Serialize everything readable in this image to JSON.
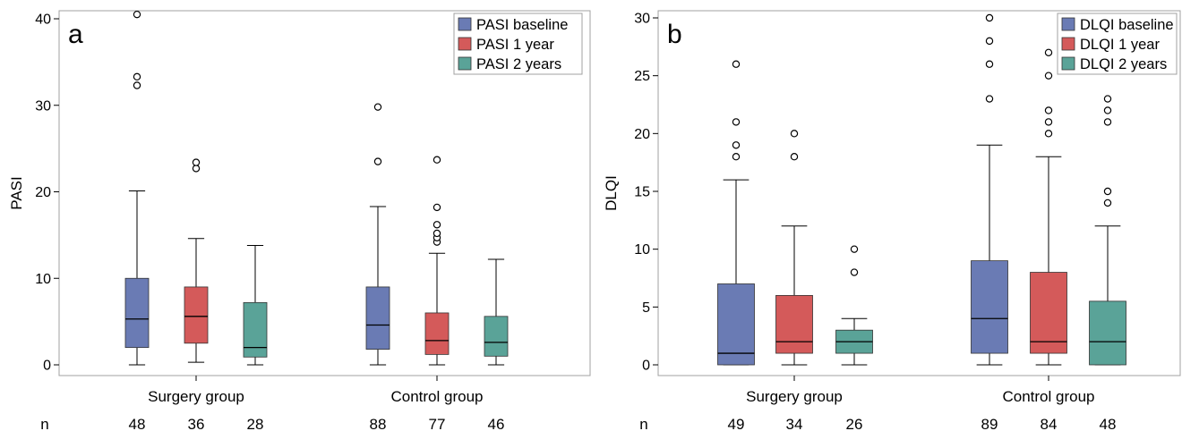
{
  "chart_data": [
    {
      "panel": "a",
      "type": "box",
      "ylabel": "PASI",
      "ylim": [
        -2,
        42
      ],
      "yticks": [
        0,
        10,
        20,
        30,
        40
      ],
      "groups": [
        "Surgery group",
        "Control group"
      ],
      "series": [
        {
          "name": "PASI baseline",
          "color": "#6a7bb4"
        },
        {
          "name": "PASI 1 year",
          "color": "#d45a5a"
        },
        {
          "name": "PASI 2 years",
          "color": "#5aa398"
        }
      ],
      "boxes": [
        {
          "group": 0,
          "series": 0,
          "whisker_low": 0,
          "q1": 2,
          "median": 5.3,
          "q3": 10,
          "whisker_high": 20.1,
          "outliers": [
            32.3,
            33.3,
            40.5
          ]
        },
        {
          "group": 0,
          "series": 1,
          "whisker_low": 0.3,
          "q1": 2.5,
          "median": 5.6,
          "q3": 9,
          "whisker_high": 14.6,
          "outliers": [
            22.7,
            23.4
          ]
        },
        {
          "group": 0,
          "series": 2,
          "whisker_low": 0,
          "q1": 0.9,
          "median": 2,
          "q3": 7.2,
          "whisker_high": 13.8,
          "outliers": []
        },
        {
          "group": 1,
          "series": 0,
          "whisker_low": 0,
          "q1": 1.8,
          "median": 4.6,
          "q3": 9,
          "whisker_high": 18.3,
          "outliers": [
            23.5,
            29.8
          ]
        },
        {
          "group": 1,
          "series": 1,
          "whisker_low": 0,
          "q1": 1.2,
          "median": 2.8,
          "q3": 6,
          "whisker_high": 12.9,
          "outliers": [
            14.2,
            14.7,
            15.2,
            16.2,
            18.2,
            23.7
          ]
        },
        {
          "group": 1,
          "series": 2,
          "whisker_low": 0,
          "q1": 1,
          "median": 2.6,
          "q3": 5.6,
          "whisker_high": 12.2,
          "outliers": []
        }
      ],
      "n_label": "n",
      "n_values": [
        "48",
        "36",
        "28",
        "88",
        "77",
        "46"
      ]
    },
    {
      "panel": "b",
      "type": "box",
      "ylabel": "DLQI",
      "ylim": [
        -1,
        31
      ],
      "yticks": [
        0,
        5,
        10,
        15,
        20,
        25,
        30
      ],
      "groups": [
        "Surgery group",
        "Control group"
      ],
      "series": [
        {
          "name": "DLQI baseline",
          "color": "#6a7bb4"
        },
        {
          "name": "DLQI 1 year",
          "color": "#d45a5a"
        },
        {
          "name": "DLQI 2 years",
          "color": "#5aa398"
        }
      ],
      "boxes": [
        {
          "group": 0,
          "series": 0,
          "whisker_low": 0,
          "q1": 0,
          "median": 1,
          "q3": 7,
          "whisker_high": 16,
          "outliers": [
            18,
            19,
            21,
            26
          ]
        },
        {
          "group": 0,
          "series": 1,
          "whisker_low": 0,
          "q1": 1,
          "median": 2,
          "q3": 6,
          "whisker_high": 12,
          "outliers": [
            18,
            20
          ]
        },
        {
          "group": 0,
          "series": 2,
          "whisker_low": 0,
          "q1": 1,
          "median": 2,
          "q3": 3,
          "whisker_high": 4,
          "outliers": [
            8,
            10
          ]
        },
        {
          "group": 1,
          "series": 0,
          "whisker_low": 0,
          "q1": 1,
          "median": 4,
          "q3": 9,
          "whisker_high": 19,
          "outliers": [
            23,
            26,
            28,
            30
          ]
        },
        {
          "group": 1,
          "series": 1,
          "whisker_low": 0,
          "q1": 1,
          "median": 2,
          "q3": 8,
          "whisker_high": 18,
          "outliers": [
            20,
            21,
            22,
            25,
            27
          ]
        },
        {
          "group": 1,
          "series": 2,
          "whisker_low": 0,
          "q1": 0,
          "median": 2,
          "q3": 5.5,
          "whisker_high": 12,
          "outliers": [
            14,
            15,
            21,
            22,
            23
          ]
        }
      ],
      "n_label": "n",
      "n_values": [
        "49",
        "34",
        "26",
        "89",
        "84",
        "48"
      ]
    }
  ]
}
